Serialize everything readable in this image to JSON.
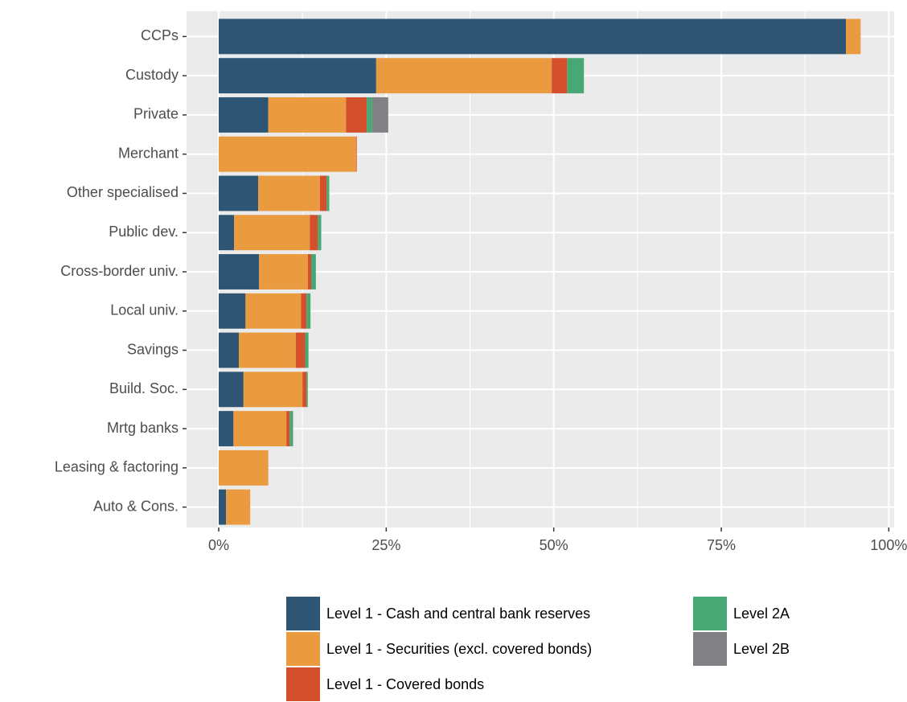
{
  "chart_data": {
    "type": "stacked-bar-horizontal",
    "categories": [
      "CCPs",
      "Custody",
      "Private",
      "Merchant",
      "Other specialised",
      "Public dev.",
      "Cross-border univ.",
      "Local univ.",
      "Savings",
      "Build. Soc.",
      "Mrtg banks",
      "Leasing & factoring",
      "Auto & Cons."
    ],
    "series": [
      {
        "name": "Level 1 - Cash and central bank reserves",
        "color": "#2e5573",
        "values": [
          93.6,
          23.5,
          7.4,
          0,
          5.9,
          2.3,
          6.0,
          4.0,
          3.0,
          3.7,
          2.2,
          0,
          1.1
        ]
      },
      {
        "name": "Level 1 - Securities (excl. covered bonds)",
        "color": "#ea9a3f",
        "values": [
          2.2,
          26.2,
          11.6,
          20.5,
          9.2,
          11.3,
          7.3,
          8.3,
          8.5,
          8.8,
          7.9,
          7.4,
          3.6
        ]
      },
      {
        "name": "Level 1 - Covered bonds",
        "color": "#d44f2c",
        "values": [
          0,
          2.3,
          3.1,
          0.1,
          1.0,
          1.2,
          0.5,
          0.8,
          1.4,
          0.6,
          0.5,
          0,
          0
        ]
      },
      {
        "name": "Level 2A",
        "color": "#48a875",
        "values": [
          0,
          2.5,
          0.8,
          0,
          0.4,
          0.5,
          0.7,
          0.6,
          0.5,
          0.2,
          0.5,
          0,
          0
        ]
      },
      {
        "name": "Level 2B",
        "color": "#808085",
        "values": [
          0,
          0,
          2.4,
          0,
          0,
          0,
          0,
          0,
          0,
          0,
          0,
          0,
          0
        ]
      }
    ],
    "xlim": [
      -4.8,
      100.8
    ],
    "xticks": [
      {
        "value": 0,
        "label": "0%"
      },
      {
        "value": 25,
        "label": "25%"
      },
      {
        "value": 50,
        "label": "50%"
      },
      {
        "value": 75,
        "label": "75%"
      },
      {
        "value": 100,
        "label": "100%"
      }
    ],
    "grid": true,
    "legend": "bottom"
  }
}
